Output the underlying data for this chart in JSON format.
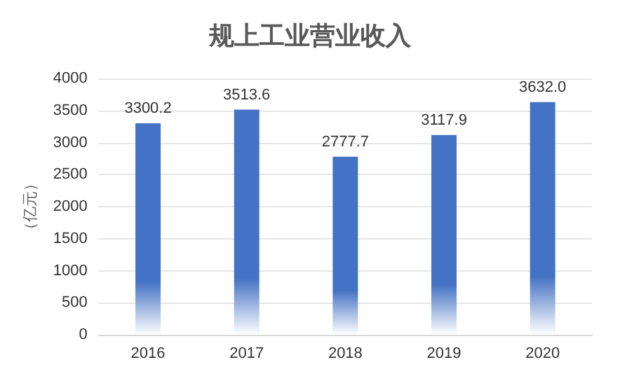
{
  "chart_data": {
    "type": "bar",
    "title": "规上工业营业收入",
    "ylabel": "（亿元）",
    "categories": [
      "2016",
      "2017",
      "2018",
      "2019",
      "2020"
    ],
    "values": [
      3300.2,
      3513.6,
      2777.7,
      3117.9,
      3632.0
    ],
    "value_labels": [
      "3300.2",
      "3513.6",
      "2777.7",
      "3117.9",
      "3632.0"
    ],
    "color": "#4472c4",
    "ylim": [
      0,
      4000
    ],
    "yticks": [
      0,
      500,
      1000,
      1500,
      2000,
      2500,
      3000,
      3500,
      4000
    ],
    "grid": "y"
  }
}
